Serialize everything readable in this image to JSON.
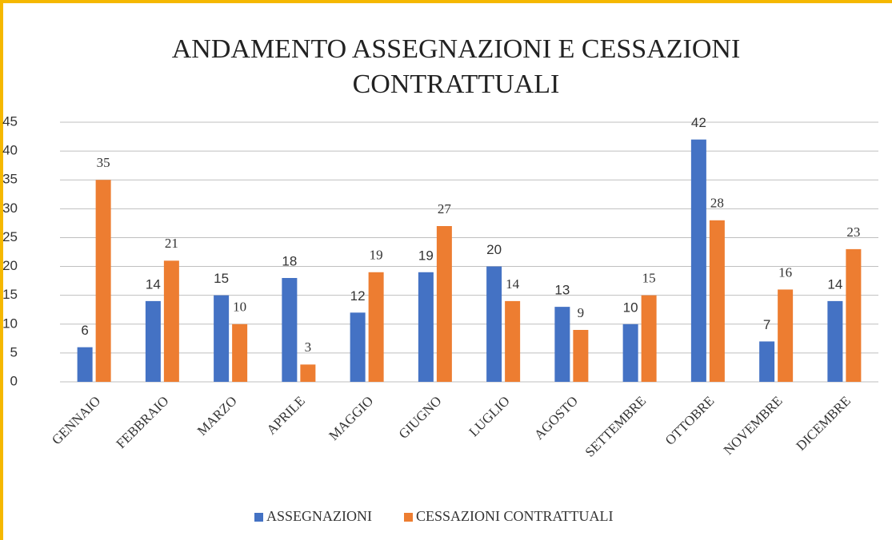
{
  "chart_data": {
    "type": "bar",
    "title": "ANDAMENTO ASSEGNAZIONI E CESSAZIONI CONTRATTUALI",
    "categories": [
      "GENNAIO",
      "FEBBRAIO",
      "MARZO",
      "APRILE",
      "MAGGIO",
      "GIUGNO",
      "LUGLIO",
      "AGOSTO",
      "SETTEMBRE",
      "OTTOBRE",
      "NOVEMBRE",
      "DICEMBRE"
    ],
    "series": [
      {
        "name": "ASSEGNAZIONI",
        "color": "#4472c4",
        "values": [
          6,
          14,
          15,
          18,
          12,
          19,
          20,
          13,
          10,
          42,
          7,
          14
        ]
      },
      {
        "name": "CESSAZIONI CONTRATTUALI",
        "color": "#ed7d31",
        "values": [
          35,
          21,
          10,
          3,
          19,
          27,
          14,
          9,
          15,
          28,
          16,
          23
        ]
      }
    ],
    "ylim": [
      0,
      45
    ],
    "yticks": [
      0,
      5,
      10,
      15,
      20,
      25,
      30,
      35,
      40,
      45
    ],
    "grid": true,
    "legend": "bottom"
  }
}
